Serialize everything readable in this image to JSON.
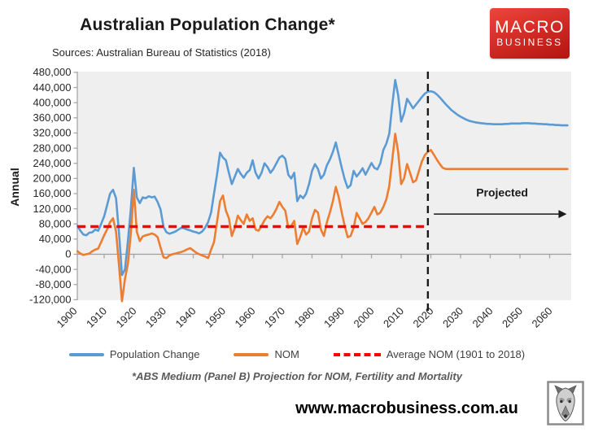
{
  "header": {
    "title": "Australian Population Change*",
    "subtitle": "Sources: Australian Bureau of Statistics (2018)"
  },
  "logo": {
    "line1": "MACRO",
    "line2": "BUSINESS",
    "bg_top": "#ef453a",
    "bg_bottom": "#b31310",
    "text_color": "#ffffff"
  },
  "footer": {
    "note": "*ABS Medium (Panel B) Projection for NOM, Fertility and Mortality",
    "url": "www.macrobusiness.com.au"
  },
  "legend": {
    "items": [
      {
        "label": "Population Change",
        "color": "#5B9BD5",
        "style": "solid"
      },
      {
        "label": "NOM",
        "color": "#ED7D31",
        "style": "solid"
      },
      {
        "label": "Average NOM (1901 to 2018)",
        "color": "#FF0000",
        "style": "dashed"
      }
    ]
  },
  "chart_data": {
    "type": "line",
    "title": "Australian Population Change*",
    "ylabel": "Annual",
    "unit": "persons per year",
    "plot_bg": "#efefef",
    "ylim": [
      -120000,
      480000
    ],
    "y_tick_step": 40000,
    "x_tick_years": [
      1900,
      1910,
      1920,
      1930,
      1940,
      1950,
      1960,
      1970,
      1980,
      1990,
      2000,
      2010,
      2020,
      2030,
      2040,
      2050,
      2060
    ],
    "x_start_year": 1901,
    "x_end_year": 2066,
    "series": [
      {
        "name": "Population Change",
        "color": "#5B9BD5",
        "start_year": 1901,
        "values": [
          75000,
          62000,
          52000,
          50000,
          57000,
          58000,
          65000,
          62000,
          80000,
          100000,
          130000,
          160000,
          170000,
          148000,
          55000,
          -55000,
          -40000,
          35000,
          120000,
          228000,
          150000,
          135000,
          150000,
          148000,
          153000,
          150000,
          152000,
          138000,
          118000,
          72000,
          58000,
          54000,
          57000,
          60000,
          65000,
          70000,
          68000,
          65000,
          63000,
          60000,
          58000,
          55000,
          60000,
          70000,
          85000,
          110000,
          160000,
          210000,
          268000,
          255000,
          248000,
          215000,
          185000,
          205000,
          225000,
          212000,
          202000,
          215000,
          222000,
          248000,
          215000,
          200000,
          215000,
          240000,
          230000,
          215000,
          225000,
          240000,
          255000,
          260000,
          252000,
          210000,
          200000,
          215000,
          140000,
          155000,
          148000,
          160000,
          185000,
          220000,
          238000,
          225000,
          200000,
          210000,
          235000,
          250000,
          270000,
          295000,
          262000,
          228000,
          198000,
          175000,
          182000,
          220000,
          205000,
          215000,
          227000,
          210000,
          225000,
          241000,
          228000,
          224000,
          240000,
          275000,
          292000,
          318000,
          395000,
          460000,
          420000,
          350000,
          372000,
          410000,
          398000,
          385000,
          395000,
          405000,
          415000,
          424000,
          429000,
          430000,
          428000,
          422000,
          414000,
          405000,
          396000,
          388000,
          380000,
          374000,
          368000,
          363000,
          359000,
          355000,
          352000,
          350000,
          348000,
          347000,
          346000,
          345000,
          344000,
          344000,
          343000,
          343000,
          343000,
          343000,
          344000,
          344000,
          345000,
          345000,
          345000,
          345000,
          346000,
          346000,
          346000,
          345000,
          345000,
          344000,
          344000,
          343000,
          343000,
          342000,
          342000,
          341000,
          341000,
          340000,
          340000,
          340000
        ]
      },
      {
        "name": "NOM",
        "color": "#ED7D31",
        "start_year": 1901,
        "values": [
          8000,
          2000,
          -2000,
          0,
          2000,
          8000,
          12000,
          15000,
          32000,
          50000,
          66000,
          85000,
          95000,
          60000,
          -30000,
          -124000,
          -65000,
          -25000,
          55000,
          170000,
          60000,
          35000,
          47000,
          50000,
          52000,
          55000,
          52000,
          45000,
          18000,
          -8000,
          -10000,
          -3000,
          0,
          2000,
          4000,
          6000,
          9000,
          13000,
          16000,
          10000,
          4000,
          0,
          -3000,
          -6000,
          -10000,
          12000,
          32000,
          85000,
          140000,
          155000,
          115000,
          95000,
          48000,
          70000,
          102000,
          90000,
          80000,
          105000,
          88000,
          95000,
          65000,
          62000,
          75000,
          90000,
          100000,
          95000,
          105000,
          120000,
          138000,
          125000,
          115000,
          70000,
          75000,
          88000,
          27000,
          45000,
          70000,
          52000,
          60000,
          95000,
          117000,
          110000,
          65000,
          48000,
          85000,
          110000,
          140000,
          178000,
          150000,
          110000,
          75000,
          45000,
          48000,
          70000,
          109000,
          95000,
          80000,
          85000,
          95000,
          110000,
          125000,
          105000,
          110000,
          125000,
          145000,
          180000,
          250000,
          318000,
          270000,
          185000,
          200000,
          238000,
          215000,
          190000,
          195000,
          220000,
          245000,
          262000,
          270000,
          275000,
          263000,
          250000,
          238000,
          228000,
          225000,
          225000,
          225000,
          225000,
          225000,
          225000,
          225000,
          225000,
          225000,
          225000,
          225000,
          225000,
          225000,
          225000,
          225000,
          225000,
          225000,
          225000,
          225000,
          225000,
          225000,
          225000,
          225000,
          225000,
          225000,
          225000,
          225000,
          225000,
          225000,
          225000,
          225000,
          225000,
          225000,
          225000,
          225000,
          225000,
          225000,
          225000,
          225000,
          225000,
          225000,
          225000
        ]
      }
    ],
    "average_nom_line": {
      "label": "Average NOM (1901 to 2018)",
      "value": 73000,
      "color": "#FF0000",
      "from_year": 1901,
      "to_year": 2019
    },
    "projection": {
      "divider_year": 2019,
      "label": "Projected",
      "label_year": 2044,
      "label_value": 152000,
      "arrow_from_year": 2021,
      "arrow_to_year": 2063,
      "arrow_value": 106000
    }
  }
}
